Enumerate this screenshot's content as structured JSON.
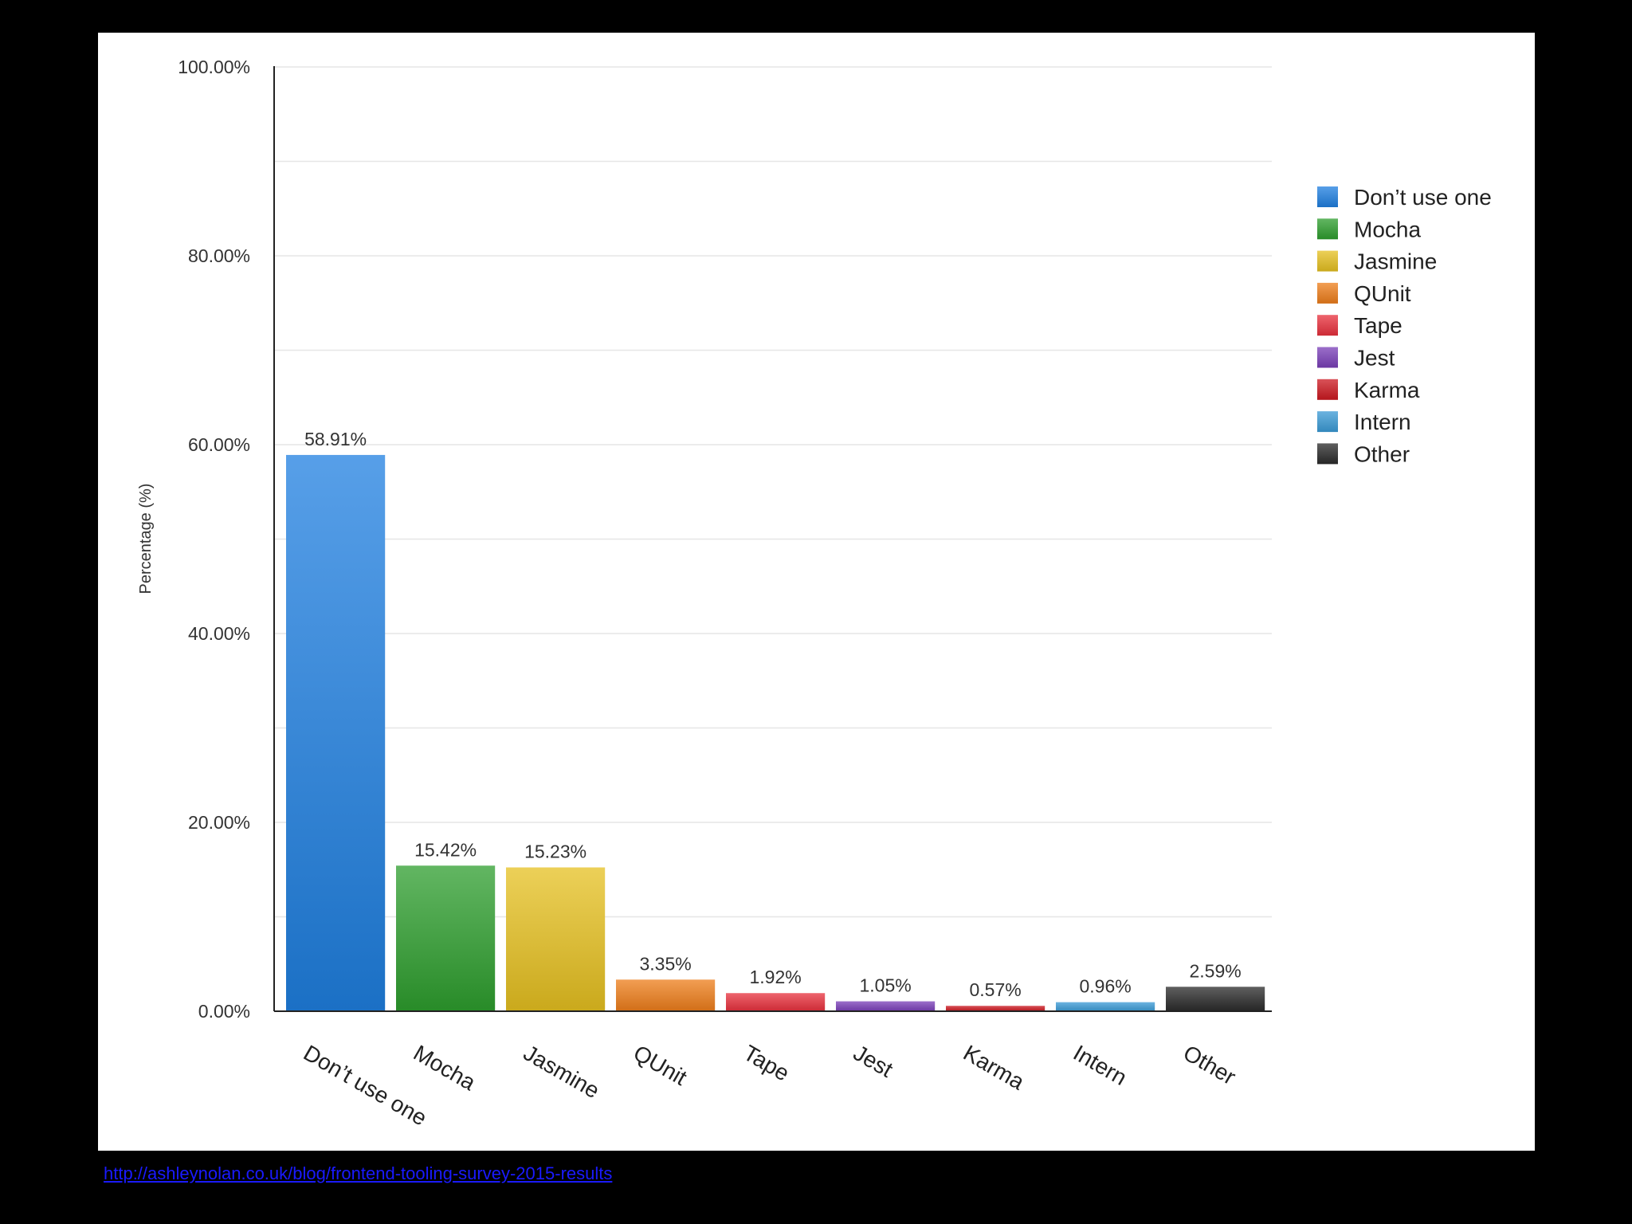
{
  "source_link": "http://ashleynolan.co.uk/blog/frontend-tooling-survey-2015-results",
  "chart_data": {
    "type": "bar",
    "categories": [
      "Don’t use one",
      "Mocha",
      "Jasmine",
      "QUnit",
      "Tape",
      "Jest",
      "Karma",
      "Intern",
      "Other"
    ],
    "values": [
      58.91,
      15.42,
      15.23,
      3.35,
      1.92,
      1.05,
      0.57,
      0.96,
      2.59
    ],
    "data_labels": [
      "58.91%",
      "15.42%",
      "15.23%",
      "3.35%",
      "1.92%",
      "1.05%",
      "0.57%",
      "0.96%",
      "2.59%"
    ],
    "colors": [
      "#1f7fe0",
      "#2e9e2e",
      "#e6c020",
      "#ee7d1a",
      "#e8303c",
      "#7a3fb8",
      "#cc1820",
      "#3a9ad6",
      "#2a2a2a"
    ],
    "ylabel": "Percentage (%)",
    "ylim": [
      0,
      100
    ],
    "yticks": [
      0,
      20,
      40,
      60,
      80,
      100
    ],
    "ytick_labels": [
      "0.00%",
      "20.00%",
      "40.00%",
      "60.00%",
      "80.00%",
      "100.00%"
    ],
    "grid": true,
    "legend": {
      "position": "right",
      "entries": [
        "Don’t use one",
        "Mocha",
        "Jasmine",
        "QUnit",
        "Tape",
        "Jest",
        "Karma",
        "Intern",
        "Other"
      ]
    }
  }
}
